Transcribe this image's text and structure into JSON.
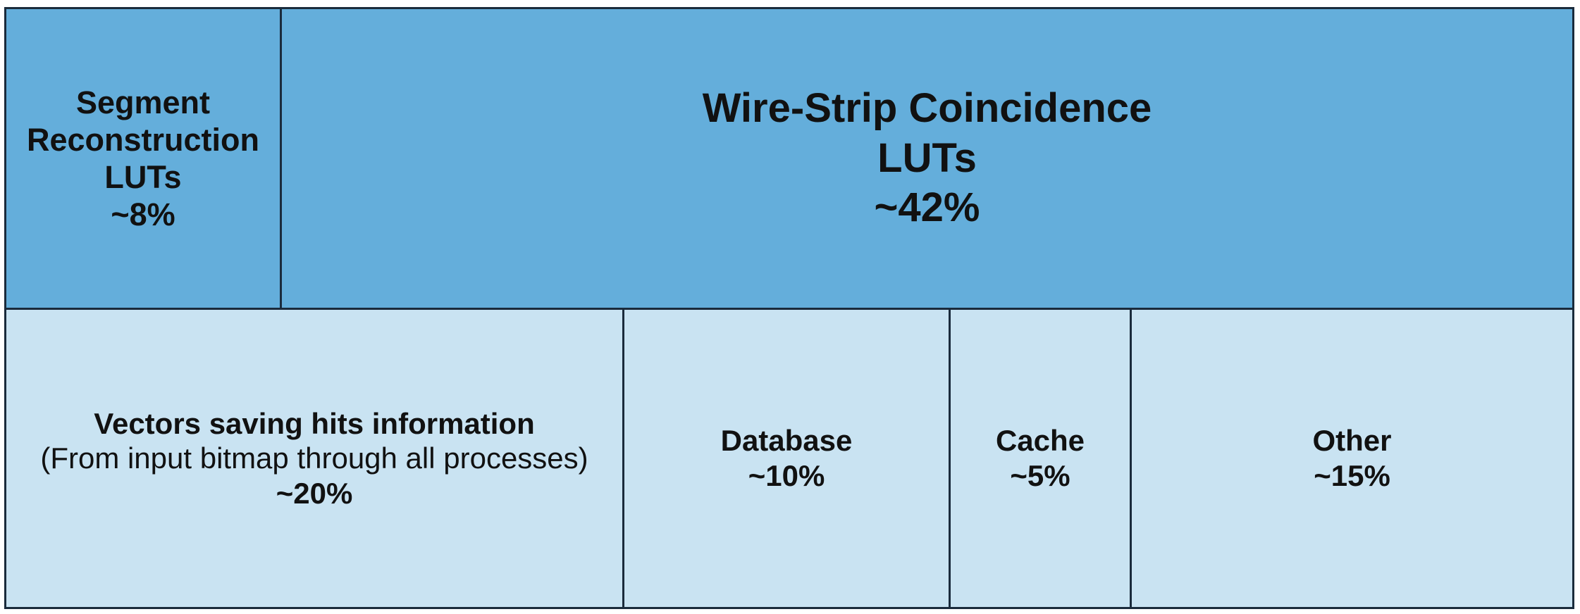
{
  "colors": {
    "top_row_fill": "#64aedb",
    "bottom_row_fill": "#c9e3f2",
    "border": "#1a2b3c"
  },
  "blocks": {
    "segment": {
      "lines": [
        "Segment",
        "Reconstruction",
        "LUTs"
      ],
      "percent": "~8%",
      "share": 8
    },
    "wire_strip": {
      "lines": [
        "Wire-Strip Coincidence",
        "LUTs"
      ],
      "percent": "~42%",
      "share": 42
    },
    "vectors": {
      "title": "Vectors saving hits information",
      "subtitle": "(From input bitmap through all processes)",
      "percent": "~20%",
      "share": 20
    },
    "database": {
      "title": "Database",
      "percent": "~10%",
      "share": 10
    },
    "cache": {
      "title": "Cache",
      "percent": "~5%",
      "share": 5
    },
    "other": {
      "title": "Other",
      "percent": "~15%",
      "share": 15
    }
  }
}
